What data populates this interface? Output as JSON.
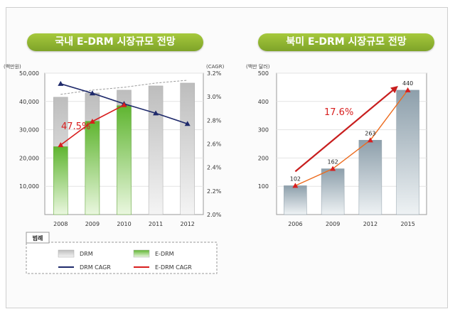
{
  "chart_data": [
    {
      "type": "bar",
      "title": "국내 E-DRM 시장규모 전망",
      "ylabel_left": "(백만원)",
      "ylabel_right": "(CAGR)",
      "categories": [
        "2008",
        "2009",
        "2010",
        "2011",
        "2012"
      ],
      "ylim_left": [
        0,
        50000
      ],
      "yticks_left": [
        "10,000",
        "20,000",
        "30,000",
        "40,000",
        "50,000"
      ],
      "ylim_right": [
        2.0,
        3.2
      ],
      "yticks_right": [
        "2.0%",
        "2.2%",
        "2.4%",
        "2.6%",
        "2.8%",
        "3.0%",
        "3.2%"
      ],
      "series": [
        {
          "name": "DRM",
          "kind": "bar",
          "values": [
            41500,
            43000,
            44000,
            45500,
            46500
          ],
          "color": "#b9b9b9"
        },
        {
          "name": "E-DRM",
          "kind": "bar",
          "values": [
            24000,
            33000,
            38500,
            null,
            null
          ],
          "color": "#6cbf3a"
        },
        {
          "name": "DRM  CAGR",
          "kind": "line",
          "axis": "right",
          "values": [
            3.11,
            3.03,
            2.94,
            2.86,
            2.77
          ],
          "color": "#1f2a6b"
        },
        {
          "name": "E-DRM CAGR",
          "kind": "line",
          "axis": "right",
          "values": [
            2.59,
            2.79,
            2.93,
            null,
            null
          ],
          "color": "#d81e1e"
        }
      ],
      "annotation": "47.5%",
      "legend": {
        "title": "범례",
        "items": [
          {
            "label": "DRM",
            "symbol": "bar",
            "color": "#b9b9b9"
          },
          {
            "label": "E-DRM",
            "symbol": "bar",
            "color": "#6cbf3a"
          },
          {
            "label": "DRM  CAGR",
            "symbol": "line",
            "color": "#1f2a6b"
          },
          {
            "label": "E-DRM CAGR",
            "symbol": "line",
            "color": "#d81e1e"
          }
        ]
      },
      "grid": true
    },
    {
      "type": "bar",
      "title": "북미 E-DRM 시장규모 전망",
      "ylabel": "(백만 달러)",
      "categories": [
        "2006",
        "2009",
        "2012",
        "2015"
      ],
      "ylim": [
        0,
        500
      ],
      "yticks": [
        "100",
        "200",
        "300",
        "400",
        "500"
      ],
      "values": [
        102,
        162,
        263,
        440
      ],
      "value_labels": [
        "102",
        "162",
        "263",
        "440"
      ],
      "color": "#9eaeb8",
      "line_color": "#ec6b1e",
      "annotation": "17.6%",
      "grid": true
    }
  ]
}
